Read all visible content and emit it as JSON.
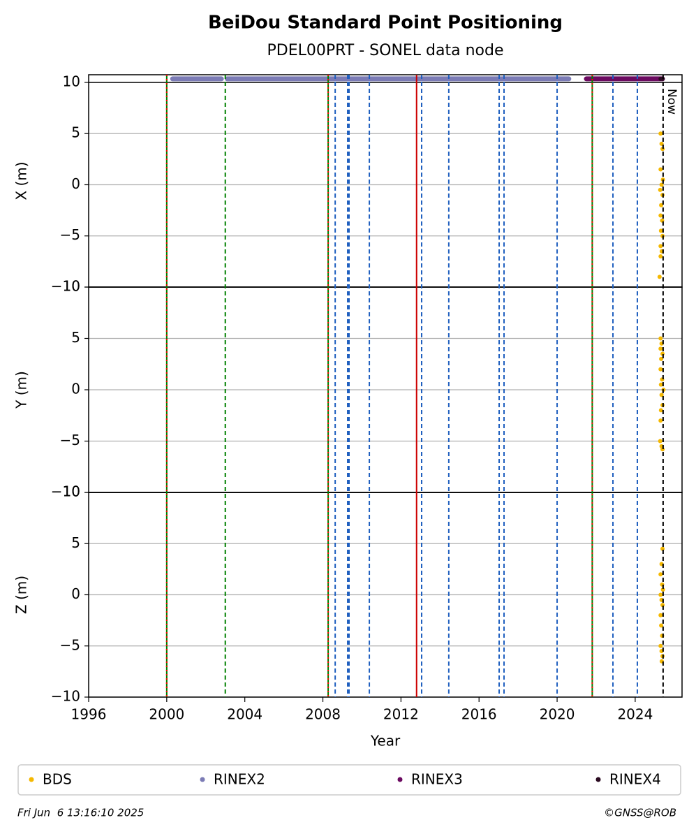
{
  "chart_data": {
    "type": "scatter",
    "title": "BeiDou Standard Point Positioning",
    "subtitle": "PDEL00PRT - SONEL data node",
    "xlabel": "Year",
    "xlim": [
      1996,
      2026.4
    ],
    "xticks": [
      1996,
      2000,
      2004,
      2008,
      2012,
      2016,
      2020,
      2024
    ],
    "grid": true,
    "legend": "bottom",
    "vlines": [
      {
        "x": 2000.0,
        "color": "#008000",
        "style": "solid",
        "overlay": "#ff0000"
      },
      {
        "x": 2003.0,
        "color": "#008000",
        "style": "dashed"
      },
      {
        "x": 2008.27,
        "color": "#008000",
        "style": "solid",
        "overlay": "#ff0000"
      },
      {
        "x": 2008.63,
        "color": "#1f5fbf",
        "style": "dashed"
      },
      {
        "x": 2009.27,
        "color": "#1f5fbf",
        "style": "dashed"
      },
      {
        "x": 2009.34,
        "color": "#1f5fbf",
        "style": "dashed"
      },
      {
        "x": 2010.38,
        "color": "#1f5fbf",
        "style": "dashed"
      },
      {
        "x": 2012.8,
        "color": "#cc0000",
        "style": "solid"
      },
      {
        "x": 2013.06,
        "color": "#1f5fbf",
        "style": "dashed"
      },
      {
        "x": 2014.45,
        "color": "#1f5fbf",
        "style": "dashed"
      },
      {
        "x": 2017.03,
        "color": "#1f5fbf",
        "style": "dashed"
      },
      {
        "x": 2017.28,
        "color": "#1f5fbf",
        "style": "dashed"
      },
      {
        "x": 2020.0,
        "color": "#1f5fbf",
        "style": "dashed"
      },
      {
        "x": 2021.8,
        "color": "#008000",
        "style": "solid",
        "overlay": "#ff0000"
      },
      {
        "x": 2022.86,
        "color": "#1f5fbf",
        "style": "dashed"
      },
      {
        "x": 2024.11,
        "color": "#1f5fbf",
        "style": "dashed"
      },
      {
        "x": 2025.43,
        "color": "#000000",
        "style": "dashed",
        "label": "Now"
      }
    ],
    "panels": [
      {
        "ylabel": "X (m)",
        "ylim": [
          -10,
          10.75
        ],
        "yticks": [
          -10,
          -5,
          0,
          5,
          10
        ],
        "reference_line": 10,
        "series": [
          {
            "name": "BDS",
            "color": "#f5b800",
            "mode": "points",
            "x": [
              2025.3,
              2025.35,
              2025.4,
              2025.3,
              2025.42,
              2025.35,
              2025.28,
              2025.4,
              2025.33,
              2025.3,
              2025.38,
              2025.32,
              2025.4,
              2025.3,
              2025.36,
              2025.3,
              2025.25
            ],
            "values": [
              5,
              4,
              3.5,
              1.5,
              0.5,
              0,
              -0.5,
              -1,
              -2,
              -3,
              -3.5,
              -4.5,
              -5,
              -6,
              -6.5,
              -7,
              -9
            ]
          },
          {
            "name": "RINEX2",
            "color": "#7b7bb5",
            "mode": "line",
            "x": [
              2000.3,
              2001,
              2002,
              2002.8,
              null,
              2003.1,
              2004,
              2005,
              2006,
              2007,
              2008,
              2009,
              2010,
              2011,
              2012,
              2013,
              2014,
              2015,
              2016,
              2017,
              2018,
              2019,
              2020,
              2020.6
            ],
            "values": [
              10.35,
              10.35,
              10.35,
              10.35,
              null,
              10.35,
              10.35,
              10.35,
              10.35,
              10.35,
              10.35,
              10.35,
              10.35,
              10.35,
              10.35,
              10.35,
              10.35,
              10.35,
              10.35,
              10.35,
              10.35,
              10.35,
              10.35,
              10.35
            ]
          },
          {
            "name": "RINEX3",
            "color": "#6b0a60",
            "mode": "line",
            "x": [
              2021.5,
              2022,
              2023,
              2024,
              2025,
              2025.4
            ],
            "values": [
              10.35,
              10.35,
              10.35,
              10.35,
              10.35,
              10.35
            ]
          },
          {
            "name": "RINEX4",
            "color": "#2a0a20",
            "mode": "points",
            "x": [
              2025.3,
              2025.4
            ],
            "values": [
              10.35,
              10.35
            ]
          }
        ]
      },
      {
        "ylabel": "Y (m)",
        "ylim": [
          -10,
          10
        ],
        "yticks": [
          -10,
          -5,
          0,
          5,
          10
        ],
        "reference_line": 10,
        "series": [
          {
            "name": "BDS",
            "color": "#f5b800",
            "mode": "points",
            "x": [
              2025.3,
              2025.35,
              2025.3,
              2025.4,
              2025.33,
              2025.3,
              2025.38,
              2025.32,
              2025.45,
              2025.35,
              2025.4,
              2025.32,
              2025.3,
              2025.28,
              2025.35,
              2025.4
            ],
            "values": [
              5,
              4.5,
              4,
              3.5,
              3,
              2,
              1,
              0.5,
              0,
              -0.5,
              -1.5,
              -2,
              -3,
              -5,
              -5.5,
              -5.8
            ]
          }
        ]
      },
      {
        "ylabel": "Z (m)",
        "ylim": [
          -10,
          10
        ],
        "yticks": [
          -10,
          -5,
          0,
          5,
          10
        ],
        "reference_line": 10,
        "series": [
          {
            "name": "BDS",
            "color": "#f5b800",
            "mode": "points",
            "x": [
              2025.4,
              2025.35,
              2025.3,
              2025.38,
              2025.42,
              2025.3,
              2025.35,
              2025.4,
              2025.3,
              2025.33,
              2025.38,
              2025.3,
              2025.35,
              2025.4,
              2025.36
            ],
            "values": [
              4.5,
              3,
              2,
              1,
              0.5,
              0,
              -0.5,
              -1,
              -2,
              -3,
              -4,
              -5,
              -5.5,
              -6,
              -6.5
            ]
          }
        ]
      }
    ]
  },
  "footer": {
    "date": "Fri Jun  6 13:16:10 2025",
    "credit": "©GNSS@ROB"
  }
}
